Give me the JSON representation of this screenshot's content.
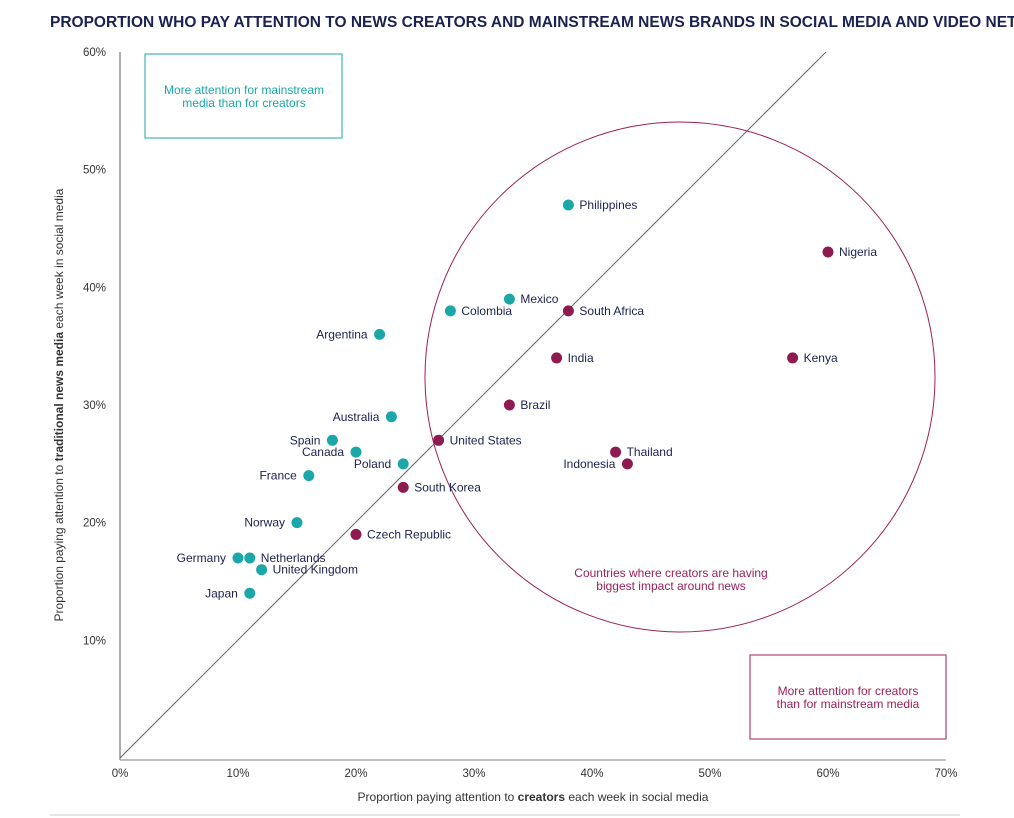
{
  "chart_data": {
    "type": "scatter",
    "title": "PROPORTION WHO PAY ATTENTION TO NEWS CREATORS AND MAINSTREAM NEWS BRANDS IN SOCIAL MEDIA AND VIDEO NETWORKS",
    "xlabel_pre": "Proportion paying attention to ",
    "xlabel_bold": "creators",
    "xlabel_post": " each week in social media",
    "ylabel_pre": "Proportion paying attention to ",
    "ylabel_bold": "traditional news media",
    "ylabel_post": " each week in social media",
    "xlim": [
      0,
      70
    ],
    "ylim": [
      0,
      60
    ],
    "xticks": [
      "0%",
      "10%",
      "20%",
      "30%",
      "40%",
      "50%",
      "60%",
      "70%"
    ],
    "yticks": [
      "10%",
      "20%",
      "30%",
      "40%",
      "50%",
      "60%"
    ],
    "reference_line": "y = x",
    "colors": {
      "mainstream": "#1ba7a7",
      "creators": "#8e1b4f",
      "text": "#1b2150"
    },
    "annotations": {
      "top_left_box": [
        "More attention for mainstream",
        "media than for creators"
      ],
      "bottom_right_box": [
        "More attention for creators",
        "than for mainstream media"
      ],
      "circle": [
        "Countries where creators are having",
        "biggest impact around news"
      ]
    },
    "points": [
      {
        "name": "Philippines",
        "x": 38,
        "y": 47,
        "group": "mainstream",
        "label": "right"
      },
      {
        "name": "Nigeria",
        "x": 60,
        "y": 43,
        "group": "creators",
        "label": "right"
      },
      {
        "name": "Mexico",
        "x": 33,
        "y": 39,
        "group": "mainstream",
        "label": "right"
      },
      {
        "name": "Colombia",
        "x": 28,
        "y": 38,
        "group": "mainstream",
        "label": "right"
      },
      {
        "name": "South Africa",
        "x": 38,
        "y": 38,
        "group": "creators",
        "label": "right"
      },
      {
        "name": "Argentina",
        "x": 22,
        "y": 36,
        "group": "mainstream",
        "label": "left"
      },
      {
        "name": "India",
        "x": 37,
        "y": 34,
        "group": "creators",
        "label": "right"
      },
      {
        "name": "Kenya",
        "x": 57,
        "y": 34,
        "group": "creators",
        "label": "right"
      },
      {
        "name": "Brazil",
        "x": 33,
        "y": 30,
        "group": "creators",
        "label": "right"
      },
      {
        "name": "Australia",
        "x": 23,
        "y": 29,
        "group": "mainstream",
        "label": "left"
      },
      {
        "name": "Spain",
        "x": 18,
        "y": 27,
        "group": "mainstream",
        "label": "left"
      },
      {
        "name": "United States",
        "x": 27,
        "y": 27,
        "group": "creators",
        "label": "right"
      },
      {
        "name": "Canada",
        "x": 20,
        "y": 26,
        "group": "mainstream",
        "label": "left"
      },
      {
        "name": "Thailand",
        "x": 42,
        "y": 26,
        "group": "creators",
        "label": "right"
      },
      {
        "name": "Poland",
        "x": 24,
        "y": 25,
        "group": "mainstream",
        "label": "left"
      },
      {
        "name": "Indonesia",
        "x": 43,
        "y": 25,
        "group": "creators",
        "label": "left"
      },
      {
        "name": "France",
        "x": 16,
        "y": 24,
        "group": "mainstream",
        "label": "left"
      },
      {
        "name": "South Korea",
        "x": 24,
        "y": 23,
        "group": "creators",
        "label": "right"
      },
      {
        "name": "Norway",
        "x": 15,
        "y": 20,
        "group": "mainstream",
        "label": "left"
      },
      {
        "name": "Czech Republic",
        "x": 20,
        "y": 19,
        "group": "creators",
        "label": "right"
      },
      {
        "name": "Germany",
        "x": 10,
        "y": 17,
        "group": "mainstream",
        "label": "left"
      },
      {
        "name": "Netherlands",
        "x": 11,
        "y": 17,
        "group": "mainstream",
        "label": "right"
      },
      {
        "name": "United Kingdom",
        "x": 12,
        "y": 16,
        "group": "mainstream",
        "label": "right"
      },
      {
        "name": "Japan",
        "x": 11,
        "y": 14,
        "group": "mainstream",
        "label": "left"
      }
    ]
  }
}
